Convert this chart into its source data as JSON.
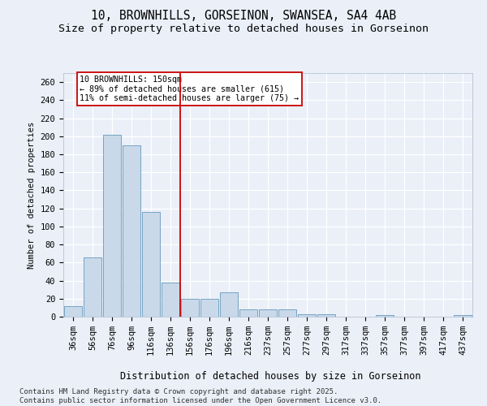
{
  "title1": "10, BROWNHILLS, GORSEINON, SWANSEA, SA4 4AB",
  "title2": "Size of property relative to detached houses in Gorseinon",
  "xlabel": "Distribution of detached houses by size in Gorseinon",
  "ylabel": "Number of detached properties",
  "bar_color": "#c9d9ea",
  "bar_edge_color": "#6699bb",
  "categories": [
    "36sqm",
    "56sqm",
    "76sqm",
    "96sqm",
    "116sqm",
    "136sqm",
    "156sqm",
    "176sqm",
    "196sqm",
    "216sqm",
    "237sqm",
    "257sqm",
    "277sqm",
    "297sqm",
    "317sqm",
    "337sqm",
    "357sqm",
    "377sqm",
    "397sqm",
    "417sqm",
    "437sqm"
  ],
  "values": [
    12,
    66,
    202,
    190,
    116,
    38,
    20,
    20,
    27,
    8,
    8,
    8,
    3,
    3,
    0,
    0,
    2,
    0,
    0,
    0,
    2
  ],
  "vline_x": 5.5,
  "vline_color": "#cc0000",
  "annotation_text": "10 BROWNHILLS: 150sqm\n← 89% of detached houses are smaller (615)\n11% of semi-detached houses are larger (75) →",
  "annotation_box_color": "#cc0000",
  "ylim": [
    0,
    270
  ],
  "yticks": [
    0,
    20,
    40,
    60,
    80,
    100,
    120,
    140,
    160,
    180,
    200,
    220,
    240,
    260
  ],
  "footer": "Contains HM Land Registry data © Crown copyright and database right 2025.\nContains public sector information licensed under the Open Government Licence v3.0.",
  "background_color": "#eaeff8",
  "plot_bg_color": "#eaeff8",
  "grid_color": "#ffffff",
  "title1_fontsize": 10.5,
  "title2_fontsize": 9.5,
  "axis_fontsize": 7.5,
  "footer_fontsize": 6.5
}
